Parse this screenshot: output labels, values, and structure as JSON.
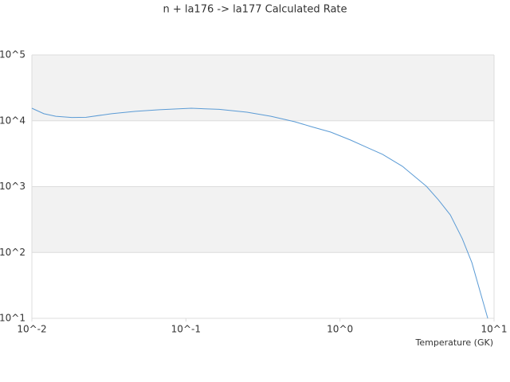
{
  "chart_data": {
    "type": "line",
    "title": "n + la176 -> la177 Calculated Rate",
    "x_label": "Temperature (GK)",
    "log_x": true,
    "log_y": true,
    "grid": true,
    "xlim": [
      0.01,
      10
    ],
    "ylim": [
      10,
      100000
    ],
    "xticks": [
      {
        "value": 0.01,
        "label": "10^-2"
      },
      {
        "value": 0.1,
        "label": "10^-1"
      },
      {
        "value": 1,
        "label": "10^0"
      },
      {
        "value": 10,
        "label": "10^1"
      }
    ],
    "yticks": [
      {
        "value": 10,
        "label": "10^1"
      },
      {
        "value": 100,
        "label": "10^2"
      },
      {
        "value": 1000,
        "label": "10^3"
      },
      {
        "value": 10000,
        "label": "10^4"
      },
      {
        "value": 100000,
        "label": "10^5"
      }
    ],
    "series": [
      {
        "color": "#5b9bd5",
        "x": [
          0.01,
          0.01196,
          0.0143,
          0.01815,
          0.0225,
          0.0329,
          0.0471,
          0.0673,
          0.1084,
          0.1644,
          0.2494,
          0.3565,
          0.509,
          0.647,
          0.871,
          1.172,
          1.489,
          1.889,
          2.545,
          3.64,
          4.35,
          5.2,
          6.22,
          7.18,
          9.1
        ],
        "values": [
          15500,
          12800,
          11700,
          11200,
          11300,
          12800,
          13900,
          14700,
          15500,
          14900,
          13500,
          11700,
          9670,
          8170,
          6730,
          5090,
          3960,
          3090,
          2030,
          1010,
          631,
          372,
          162,
          70,
          10
        ]
      }
    ]
  }
}
